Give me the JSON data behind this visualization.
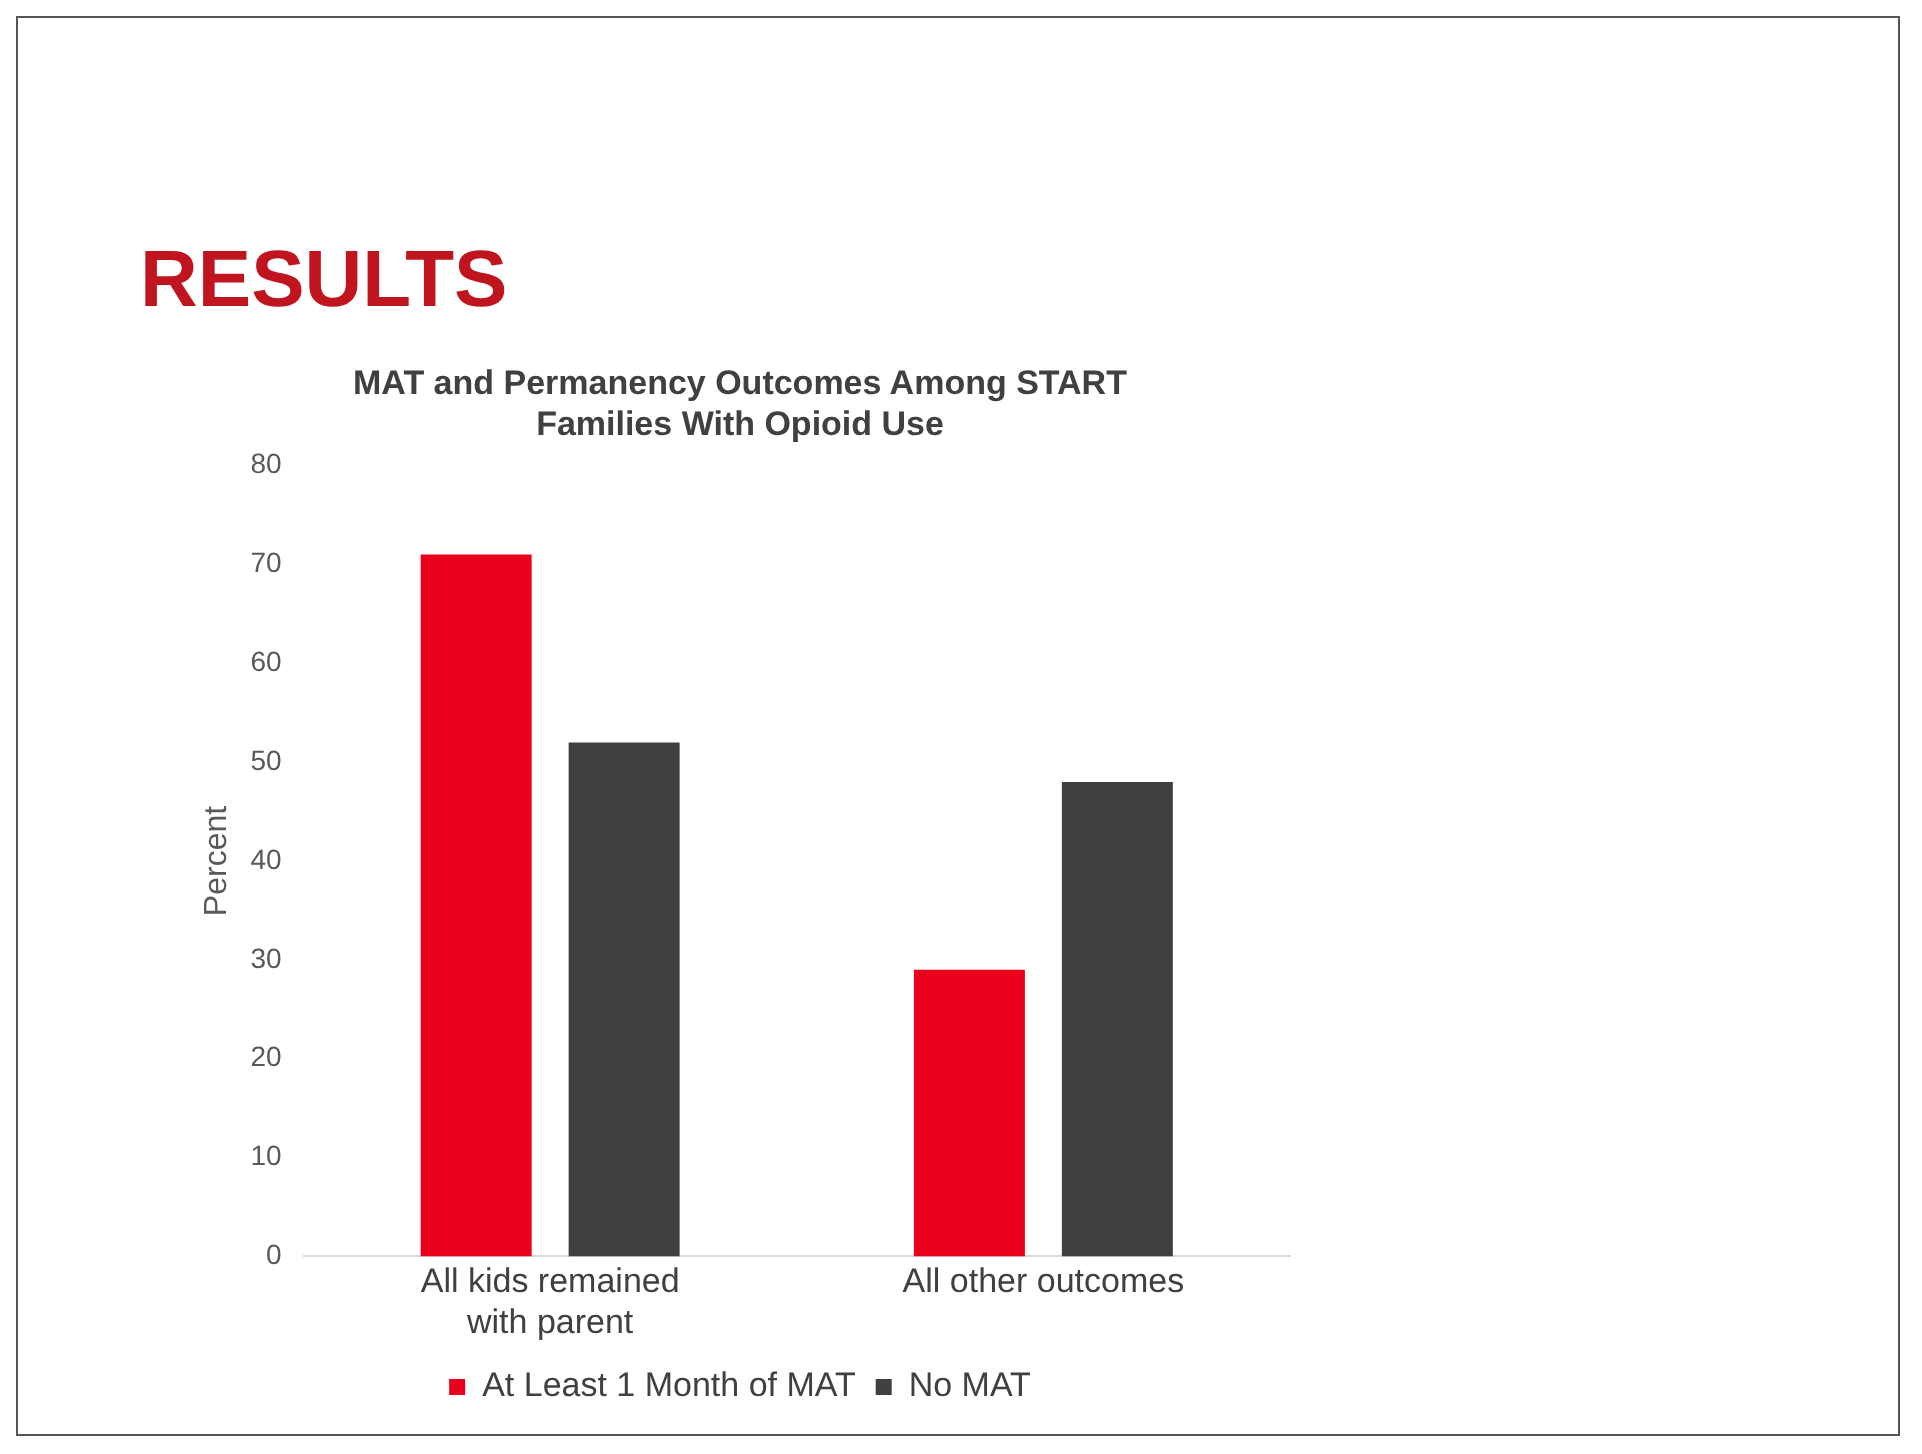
{
  "chart_data": {
    "type": "bar",
    "title": "MAT and Permanency Outcomes Among START Families With Opioid Use",
    "ylabel": "Percent",
    "annotations": [
      "RESULTS"
    ],
    "categories": [
      "All kids remained with parent",
      "All other outcomes"
    ],
    "series": [
      {
        "name": "At Least 1 Month of MAT",
        "color": "#e8001c",
        "values": [
          71,
          29
        ]
      },
      {
        "name": "No MAT",
        "color": "#404040",
        "values": [
          52,
          48
        ]
      }
    ],
    "ylim": [
      0,
      80
    ],
    "yticks": [
      0,
      10,
      20,
      30,
      40,
      50,
      60,
      70,
      80
    ],
    "grid": false,
    "legend": "bottom"
  }
}
